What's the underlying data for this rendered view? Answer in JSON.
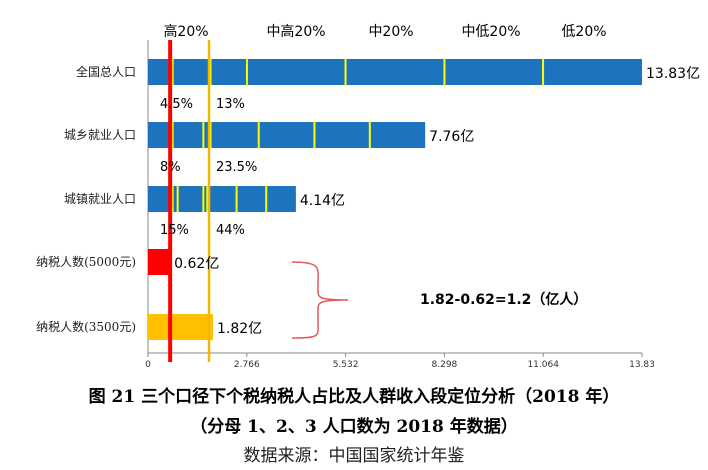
{
  "chart_data": {
    "type": "bar",
    "orientation": "horizontal",
    "categories": [
      "全国总人口",
      "城乡就业人口",
      "城镇就业人口",
      "纳税人数(5000元)",
      "纳税人数(3500元)"
    ],
    "values": [
      13.83,
      7.76,
      4.14,
      0.62,
      1.82
    ],
    "value_labels": [
      "13.83亿",
      "7.76亿",
      "4.14亿",
      "0.62亿",
      "1.82亿"
    ],
    "bar_colors": [
      "#1E73BE",
      "#1E73BE",
      "#1E73BE",
      "#FF0000",
      "#FFC000"
    ],
    "xlim": [
      0,
      13.83
    ],
    "xticks": [
      "0",
      "2.766",
      "5.532",
      "8.298",
      "11.064",
      "13.83"
    ],
    "quintile_labels": [
      "高20%",
      "中高20%",
      "中20%",
      "中低20%",
      "低20%"
    ],
    "quintile_marks": [
      [
        0.69,
        1.75,
        2.77,
        5.53,
        8.3,
        11.06
      ],
      [
        0.69,
        1.55,
        1.75,
        3.1,
        4.66,
        6.21
      ],
      [
        0.69,
        0.83,
        1.55,
        1.66,
        2.48,
        3.31
      ]
    ],
    "quintile_mark_color": "#FFFF00",
    "red_line": 0.62,
    "orange_line": 1.82,
    "percent_labels": [
      {
        "after_category": "全国总人口",
        "left": "4.5%",
        "right": "13%"
      },
      {
        "after_category": "城乡就业人口",
        "left": "8%",
        "right": "23.5%"
      },
      {
        "after_category": "城镇就业人口",
        "left": "15%",
        "right": "44%"
      }
    ],
    "annotation": "1.82-0.62=1.2（亿人）"
  },
  "caption": {
    "line1": "图 21  三个口径下个税纳税人占比及人群收入段定位分析（2018 年）",
    "line2": "（分母 1、2、3 人口数为 2018 年数据）",
    "line3": "数据来源：中国国家统计年鉴"
  }
}
